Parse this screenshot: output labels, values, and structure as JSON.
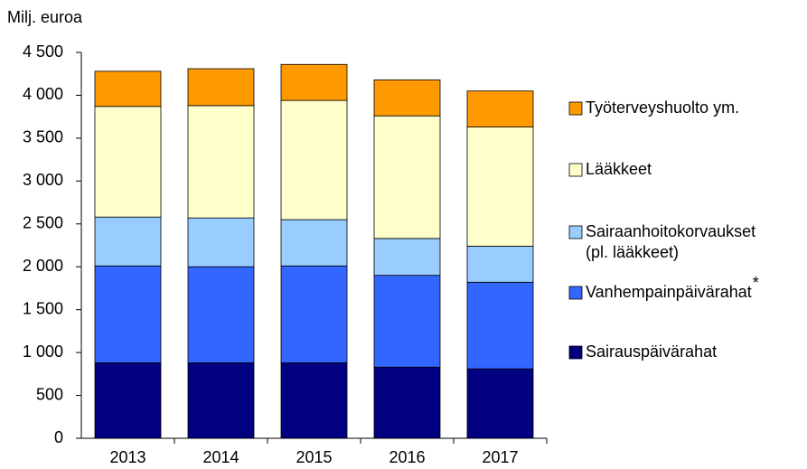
{
  "chart_data": {
    "type": "stacked_bar",
    "y_label": "Milj. euroa",
    "categories": [
      "2013",
      "2014",
      "2015",
      "2016",
      "2017"
    ],
    "series": [
      {
        "name": "Sairauspäivärahat",
        "color": "#000080",
        "values": [
          880,
          880,
          880,
          830,
          810
        ]
      },
      {
        "name": "Vanhempainpäivärahat",
        "note": "*",
        "color": "#3366ff",
        "values": [
          1130,
          1120,
          1130,
          1070,
          1010
        ]
      },
      {
        "name": "Sairaanhoitokorvaukset (pl. lääkkeet)",
        "color": "#99ccff",
        "values": [
          570,
          570,
          540,
          430,
          420
        ]
      },
      {
        "name": "Lääkkeet",
        "color": "#ffffcc",
        "values": [
          1290,
          1310,
          1390,
          1430,
          1390
        ]
      },
      {
        "name": "Työterveyshuolto ym.",
        "color": "#ff9900",
        "values": [
          410,
          430,
          420,
          420,
          420
        ]
      }
    ],
    "ylim": [
      0,
      4500
    ],
    "yticks": [
      0,
      500,
      {
        "value": 1000,
        "label": "1 000"
      },
      {
        "value": 1500,
        "label": "1 500"
      },
      {
        "value": 2000,
        "label": "2 000"
      },
      {
        "value": 2500,
        "label": "2 500"
      },
      {
        "value": 3000,
        "label": "3 000"
      },
      {
        "value": 3500,
        "label": "3 500"
      },
      {
        "value": 4000,
        "label": "4 000"
      },
      {
        "value": 4500,
        "label": "4 500"
      }
    ],
    "grid": false
  }
}
